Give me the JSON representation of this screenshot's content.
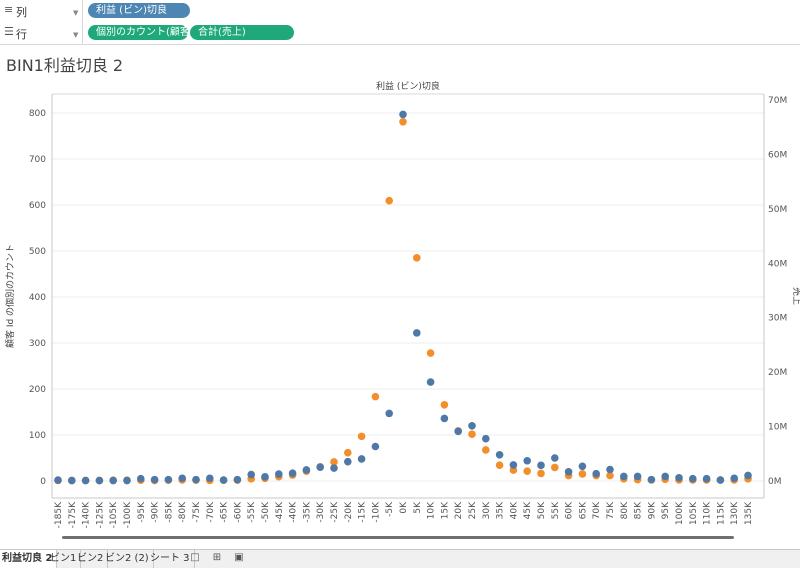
{
  "shelves": {
    "columns": {
      "label": "列",
      "pills": [
        "利益 (ビン)切良"
      ]
    },
    "rows": {
      "label": "行",
      "pills": [
        "個別のカウント(顧客 Id)",
        "合計(売上)"
      ]
    }
  },
  "sheet_title": "BIN1利益切良 2",
  "tabs": [
    {
      "label": "利益切良 2",
      "active": true
    },
    {
      "label": "ビン1",
      "active": false
    },
    {
      "label": "ビン2",
      "active": false
    },
    {
      "label": "ビン2 (2)",
      "active": false
    },
    {
      "label": "シート 3",
      "active": false
    }
  ],
  "colors": {
    "series1": "#4e79a7",
    "series2": "#f28e2b"
  },
  "chart_data": {
    "type": "scatter",
    "title": "利益 (ビン)切良",
    "xlabel": "",
    "ylabel": "顧客 Id の個別のカウント",
    "y2label": "売上",
    "categories": [
      "-185K",
      "-175K",
      "-140K",
      "-125K",
      "-105K",
      "-100K",
      "-95K",
      "-90K",
      "-85K",
      "-80K",
      "-75K",
      "-70K",
      "-65K",
      "-60K",
      "-55K",
      "-50K",
      "-45K",
      "-40K",
      "-35K",
      "-30K",
      "-25K",
      "-20K",
      "-15K",
      "-10K",
      "-5K",
      "0K",
      "5K",
      "10K",
      "15K",
      "20K",
      "25K",
      "30K",
      "35K",
      "40K",
      "45K",
      "50K",
      "55K",
      "60K",
      "65K",
      "70K",
      "75K",
      "80K",
      "85K",
      "90K",
      "95K",
      "100K",
      "105K",
      "110K",
      "115K",
      "130K",
      "135K"
    ],
    "ylim": [
      0,
      850
    ],
    "y2lim": [
      0,
      70000000
    ],
    "y_ticks": [
      0,
      100,
      200,
      300,
      400,
      500,
      600,
      700,
      800
    ],
    "y_tick_labels": [
      "0",
      "100",
      "200",
      "300",
      "400",
      "500",
      "600",
      "700",
      "800"
    ],
    "y2_ticks": [
      0,
      10000000,
      20000000,
      30000000,
      40000000,
      50000000,
      60000000,
      70000000
    ],
    "y2_tick_labels": [
      "0M",
      "10M",
      "20M",
      "30M",
      "40M",
      "50M",
      "60M",
      "70M"
    ],
    "grid": true,
    "series": [
      {
        "name": "個別のカウント(顧客 Id)",
        "axis": "left",
        "values": [
          2,
          1,
          1,
          1,
          1,
          1,
          5,
          3,
          3,
          6,
          3,
          6,
          2,
          3,
          14,
          9,
          15,
          17,
          24,
          30,
          28,
          42,
          48,
          75,
          147,
          797,
          322,
          215,
          136,
          108,
          120,
          92,
          57,
          35,
          44,
          34,
          50,
          20,
          32,
          16,
          25,
          10,
          10,
          3,
          10,
          7,
          5,
          5,
          2,
          6,
          12
        ]
      },
      {
        "name": "合計(売上)",
        "axis": "right",
        "values": [
          100000,
          100000,
          100000,
          100000,
          150000,
          150000,
          150000,
          100000,
          150000,
          200000,
          150000,
          100000,
          150000,
          150000,
          400000,
          500000,
          800000,
          1100000,
          1800000,
          2600000,
          3500000,
          5200000,
          8200000,
          15500000,
          51500000,
          66000000,
          41000000,
          23500000,
          14000000,
          9200000,
          8600000,
          5700000,
          2900000,
          2000000,
          1800000,
          1400000,
          2500000,
          1000000,
          1300000,
          1000000,
          1000000,
          400000,
          250000,
          200000,
          300000,
          200000,
          200000,
          200000,
          200000,
          200000,
          400000
        ]
      }
    ]
  }
}
